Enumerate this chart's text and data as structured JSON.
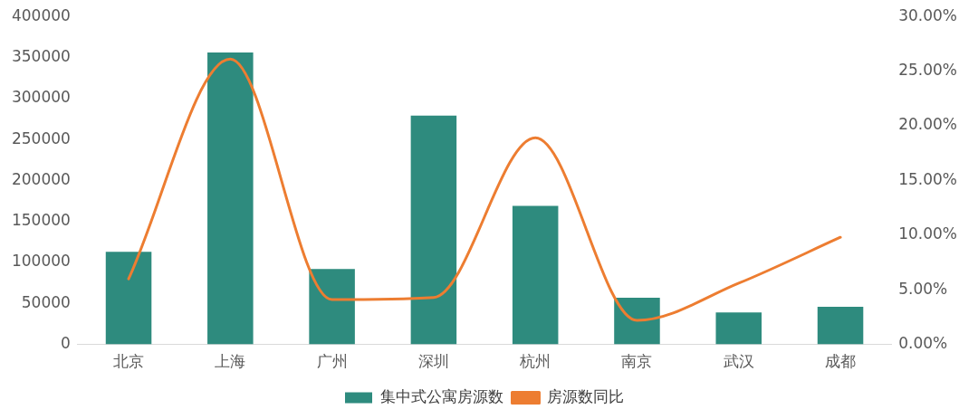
{
  "chart_data": {
    "type": "bar",
    "categories": [
      "北京",
      "上海",
      "广州",
      "深圳",
      "杭州",
      "南京",
      "武汉",
      "成都"
    ],
    "series": [
      {
        "name": "集中式公寓房源数",
        "color": "#2e8b7e",
        "values": [
          113000,
          356000,
          92000,
          279000,
          169000,
          57000,
          39000,
          46000
        ]
      },
      {
        "name": "房源数同比",
        "type": "line",
        "axis": "y2",
        "color": "#ed7d31",
        "marker": "none",
        "values": [
          6.0,
          26.1,
          4.1,
          4.3,
          18.9,
          2.2,
          5.6,
          9.8
        ]
      }
    ],
    "ylim": [
      0,
      400000
    ],
    "yticks": [
      0,
      50000,
      100000,
      150000,
      200000,
      250000,
      300000,
      350000,
      400000
    ],
    "y2lim": [
      0,
      30
    ],
    "y2ticks": [
      {
        "value": 0,
        "label": "0.00%"
      },
      {
        "value": 5,
        "label": "5.00%"
      },
      {
        "value": 10,
        "label": "10.00%"
      },
      {
        "value": 15,
        "label": "15.00%"
      },
      {
        "value": 20,
        "label": "20.00%"
      },
      {
        "value": 25,
        "label": "25.00%"
      },
      {
        "value": 30,
        "label": "30.00%"
      }
    ],
    "grid": false,
    "legend": "bottom"
  }
}
